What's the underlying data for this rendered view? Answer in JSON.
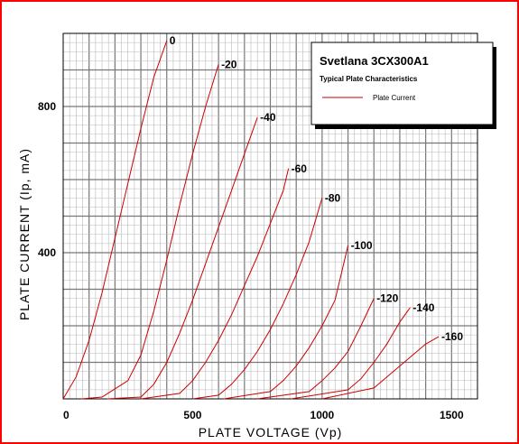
{
  "chart_data": {
    "type": "line",
    "title": "Svetlana 3CX300A1",
    "subtitle": "Typical Plate Characteristics",
    "xlabel": "PLATE VOLTAGE (Vp)",
    "ylabel": "PLATE CURRENT (Ip, mA)",
    "xlim": [
      0,
      1600
    ],
    "ylim": [
      0,
      1000
    ],
    "x_ticks": [
      0,
      500,
      1000,
      1500
    ],
    "x_tick_labels": [
      "0",
      "500",
      "1000",
      "1500"
    ],
    "y_ticks": [
      400,
      800
    ],
    "y_tick_labels": [
      "400",
      "800"
    ],
    "grid": true,
    "legend": {
      "position": "top-right",
      "entries": [
        "Plate Current"
      ]
    },
    "colors": {
      "curve": "#cc0000",
      "grid_major": "#777777",
      "grid_minor": "#b8b8b8",
      "border": "#ff0000",
      "shadow": "#000000"
    },
    "series": [
      {
        "name": "0",
        "x": [
          0,
          50,
          100,
          150,
          200,
          250,
          300,
          350,
          400
        ],
        "y": [
          0,
          60,
          160,
          290,
          440,
          590,
          740,
          880,
          980
        ]
      },
      {
        "name": "-20",
        "x": [
          70,
          150,
          250,
          300,
          350,
          400,
          450,
          500,
          550,
          600
        ],
        "y": [
          0,
          5,
          50,
          120,
          240,
          380,
          530,
          670,
          800,
          915
        ]
      },
      {
        "name": "-40",
        "x": [
          170,
          300,
          350,
          400,
          450,
          500,
          550,
          600,
          650,
          700,
          750
        ],
        "y": [
          0,
          5,
          40,
          100,
          180,
          270,
          370,
          470,
          570,
          670,
          770
        ]
      },
      {
        "name": "-60",
        "x": [
          300,
          450,
          500,
          550,
          600,
          650,
          700,
          750,
          800,
          850,
          870
        ],
        "y": [
          0,
          15,
          50,
          100,
          160,
          230,
          310,
          390,
          480,
          570,
          630
        ]
      },
      {
        "name": "-80",
        "x": [
          500,
          600,
          650,
          700,
          750,
          800,
          850,
          900,
          950,
          1000
        ],
        "y": [
          0,
          10,
          40,
          80,
          130,
          190,
          260,
          340,
          430,
          550
        ]
      },
      {
        "name": "-100",
        "x": [
          620,
          800,
          850,
          900,
          950,
          1000,
          1050,
          1100
        ],
        "y": [
          0,
          20,
          50,
          90,
          140,
          200,
          270,
          420
        ]
      },
      {
        "name": "-120",
        "x": [
          750,
          950,
          1000,
          1050,
          1100,
          1150,
          1200
        ],
        "y": [
          0,
          20,
          50,
          85,
          130,
          200,
          275
        ]
      },
      {
        "name": "-140",
        "x": [
          880,
          1100,
          1150,
          1200,
          1250,
          1300,
          1340
        ],
        "y": [
          0,
          25,
          55,
          100,
          150,
          210,
          250
        ]
      },
      {
        "name": "-160",
        "x": [
          1000,
          1200,
          1250,
          1300,
          1350,
          1400,
          1450
        ],
        "y": [
          0,
          30,
          60,
          90,
          120,
          150,
          170
        ]
      }
    ]
  }
}
